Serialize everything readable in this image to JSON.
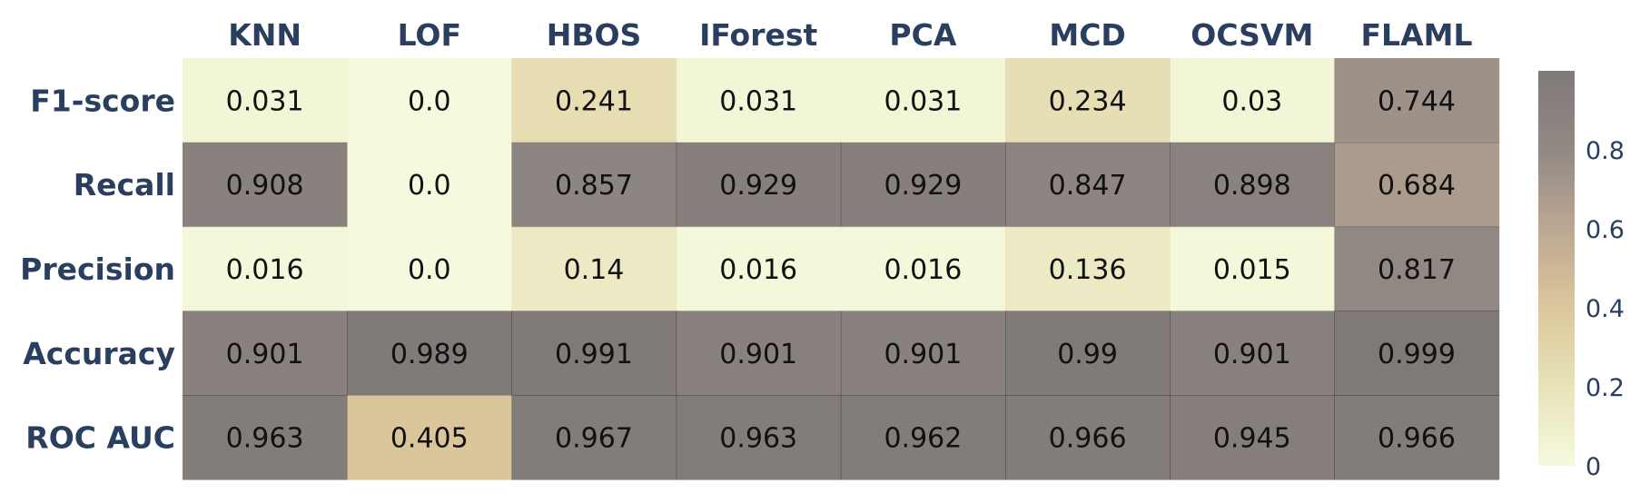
{
  "chart_data": {
    "type": "heatmap",
    "columns": [
      "KNN",
      "LOF",
      "HBOS",
      "IForest",
      "PCA",
      "MCD",
      "OCSVM",
      "FLAML"
    ],
    "rows": [
      "F1-score",
      "Recall",
      "Precision",
      "Accuracy",
      "ROC AUC"
    ],
    "values": [
      [
        0.031,
        0.0,
        0.241,
        0.031,
        0.031,
        0.234,
        0.03,
        0.744
      ],
      [
        0.908,
        0.0,
        0.857,
        0.929,
        0.929,
        0.847,
        0.898,
        0.684
      ],
      [
        0.016,
        0.0,
        0.14,
        0.016,
        0.016,
        0.136,
        0.015,
        0.817
      ],
      [
        0.901,
        0.989,
        0.991,
        0.901,
        0.901,
        0.99,
        0.901,
        0.999
      ],
      [
        0.963,
        0.405,
        0.967,
        0.963,
        0.962,
        0.966,
        0.945,
        0.966
      ]
    ],
    "value_labels": [
      [
        "0.031",
        "0.0",
        "0.241",
        "0.031",
        "0.031",
        "0.234",
        "0.03",
        "0.744"
      ],
      [
        "0.908",
        "0.0",
        "0.857",
        "0.929",
        "0.929",
        "0.847",
        "0.898",
        "0.684"
      ],
      [
        "0.016",
        "0.0",
        "0.14",
        "0.016",
        "0.016",
        "0.136",
        "0.015",
        "0.817"
      ],
      [
        "0.901",
        "0.989",
        "0.991",
        "0.901",
        "0.901",
        "0.99",
        "0.901",
        "0.999"
      ],
      [
        "0.963",
        "0.405",
        "0.967",
        "0.963",
        "0.962",
        "0.966",
        "0.945",
        "0.966"
      ]
    ],
    "colorbar": {
      "range": [
        0,
        1
      ],
      "ticks": [
        0,
        0.2,
        0.4,
        0.6,
        0.8
      ],
      "tick_labels": [
        "0",
        "0.2",
        "0.4",
        "0.6",
        "0.8"
      ],
      "colorscale": [
        "#eef5c6",
        "#d9d08a",
        "#c4a15a",
        "#8f6d4a",
        "#4a3a33",
        "#2a211e"
      ]
    },
    "cell_opacity": 0.6,
    "column_axis_position": "top",
    "legend": "colorbar-right"
  }
}
